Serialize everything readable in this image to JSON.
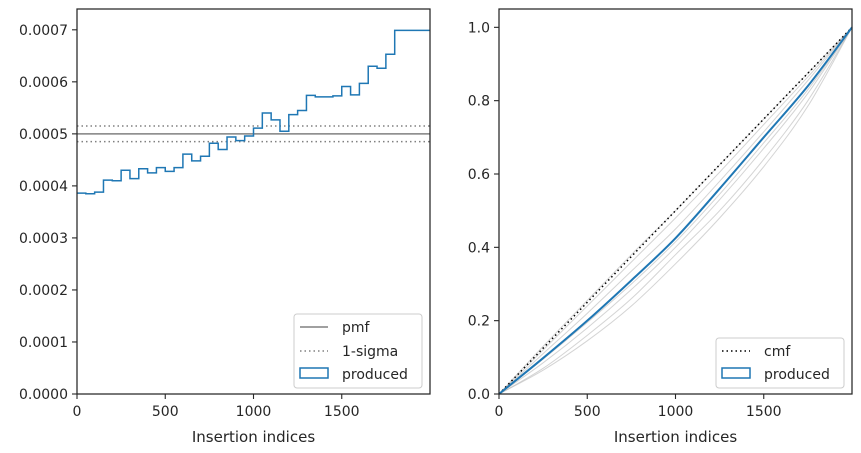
{
  "chart_data": [
    {
      "type": "step",
      "xlabel": "Insertion indices",
      "ylabel": "",
      "xlim": [
        0,
        2000
      ],
      "ylim": [
        0,
        0.00074
      ],
      "xticks": [
        0,
        500,
        1000,
        1500
      ],
      "xtick_labels": [
        "0",
        "500",
        "1000",
        "1500"
      ],
      "yticks": [
        0,
        0.0001,
        0.0002,
        0.0003,
        0.0004,
        0.0005,
        0.0006,
        0.0007
      ],
      "ytick_labels": [
        "0.0000",
        "0.0001",
        "0.0002",
        "0.0003",
        "0.0004",
        "0.0005",
        "0.0006",
        "0.0007"
      ],
      "grid": false,
      "legend_position": "lower-right",
      "legend": [
        {
          "label": "pmf",
          "style": "solid",
          "color": "#808080"
        },
        {
          "label": "1-sigma",
          "style": "dotted",
          "color": "#808080"
        },
        {
          "label": "produced",
          "style": "patch",
          "color": "#1f77b4"
        }
      ],
      "hlines": [
        {
          "name": "pmf",
          "y": 0.0005,
          "style": "solid",
          "color": "#808080"
        },
        {
          "name": "1-sigma",
          "y": 0.000515,
          "style": "dotted",
          "color": "#808080"
        },
        {
          "name": "1-sigma",
          "y": 0.000485,
          "style": "dotted",
          "color": "#808080"
        }
      ],
      "series": [
        {
          "name": "produced",
          "color": "#1f77b4",
          "bin_edges": [
            0,
            50,
            100,
            150,
            200,
            250,
            300,
            350,
            400,
            450,
            500,
            550,
            600,
            650,
            700,
            750,
            800,
            850,
            900,
            950,
            1000,
            1050,
            1100,
            1150,
            1200,
            1250,
            1300,
            1350,
            1400,
            1450,
            1500,
            1550,
            1600,
            1650,
            1700,
            1750,
            1800,
            1850,
            1900,
            1950,
            2000
          ],
          "values": [
            0.000386,
            0.000385,
            0.000388,
            0.000411,
            0.00041,
            0.00043,
            0.000414,
            0.000433,
            0.000425,
            0.000435,
            0.000428,
            0.000435,
            0.000461,
            0.000448,
            0.000457,
            0.000482,
            0.00047,
            0.000494,
            0.000487,
            0.000496,
            0.000511,
            0.00054,
            0.000527,
            0.000505,
            0.000537,
            0.000545,
            0.000574,
            0.000571,
            0.000571,
            0.000573,
            0.000591,
            0.000575,
            0.000597,
            0.00063,
            0.000626,
            0.000653,
            0.000699,
            0.000699,
            0.000699,
            0.000699
          ]
        }
      ]
    },
    {
      "type": "line",
      "xlabel": "Insertion indices",
      "ylabel": "",
      "xlim": [
        0,
        2000
      ],
      "ylim": [
        0,
        1.05
      ],
      "xticks": [
        0,
        500,
        1000,
        1500
      ],
      "xtick_labels": [
        "0",
        "500",
        "1000",
        "1500"
      ],
      "yticks": [
        0,
        0.2,
        0.4,
        0.6,
        0.8,
        1.0
      ],
      "ytick_labels": [
        "0.0",
        "0.2",
        "0.4",
        "0.6",
        "0.8",
        "1.0"
      ],
      "grid": false,
      "legend_position": "lower-right",
      "legend": [
        {
          "label": "cmf",
          "style": "dotted",
          "color": "#000000"
        },
        {
          "label": "produced",
          "style": "patch",
          "color": "#1f77b4"
        }
      ],
      "series": [
        {
          "name": "cmf",
          "color": "#000000",
          "style": "dotted",
          "x": [
            0,
            2000
          ],
          "y": [
            0,
            1
          ]
        },
        {
          "name": "produced",
          "color": "#1f77b4",
          "x": [
            0,
            250,
            500,
            750,
            1000,
            1250,
            1500,
            1750,
            2000
          ],
          "y": [
            0,
            0.098,
            0.2,
            0.31,
            0.425,
            0.56,
            0.7,
            0.84,
            1.0
          ]
        }
      ],
      "background_curves": [
        {
          "x": [
            0,
            250,
            500,
            750,
            1000,
            1250,
            1500,
            1750,
            2000
          ],
          "y": [
            0,
            0.07,
            0.16,
            0.26,
            0.38,
            0.5,
            0.64,
            0.8,
            1.0
          ]
        },
        {
          "x": [
            0,
            250,
            500,
            750,
            1000,
            1250,
            1500,
            1750,
            2000
          ],
          "y": [
            0,
            0.085,
            0.18,
            0.285,
            0.4,
            0.53,
            0.67,
            0.82,
            1.0
          ]
        },
        {
          "x": [
            0,
            250,
            500,
            750,
            1000,
            1250,
            1500,
            1750,
            2000
          ],
          "y": [
            0,
            0.11,
            0.22,
            0.335,
            0.45,
            0.58,
            0.715,
            0.855,
            1.0
          ]
        },
        {
          "x": [
            0,
            250,
            500,
            750,
            1000,
            1250,
            1500,
            1750,
            2000
          ],
          "y": [
            0,
            0.12,
            0.24,
            0.36,
            0.48,
            0.605,
            0.735,
            0.865,
            1.0
          ]
        },
        {
          "x": [
            0,
            250,
            500,
            750,
            1000,
            1250,
            1500,
            1750,
            2000
          ],
          "y": [
            0,
            0.065,
            0.145,
            0.24,
            0.355,
            0.48,
            0.62,
            0.785,
            1.0
          ]
        },
        {
          "x": [
            0,
            250,
            500,
            750,
            1000,
            1250,
            1500,
            1750,
            2000
          ],
          "y": [
            0,
            0.095,
            0.195,
            0.3,
            0.415,
            0.545,
            0.685,
            0.83,
            1.0
          ]
        },
        {
          "x": [
            0,
            250,
            500,
            750,
            1000,
            1250,
            1500,
            1750,
            2000
          ],
          "y": [
            0,
            0.13,
            0.255,
            0.38,
            0.5,
            0.625,
            0.75,
            0.875,
            1.0
          ]
        }
      ]
    }
  ]
}
